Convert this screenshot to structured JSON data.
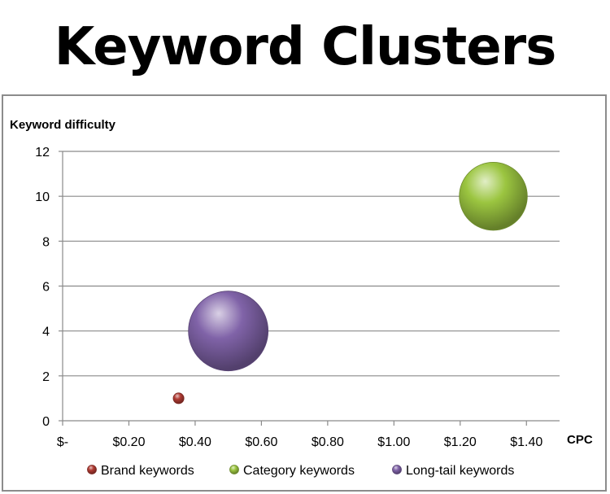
{
  "page_title": "Keyword Clusters",
  "chart_data": {
    "type": "bubble",
    "title": "Keyword Clusters",
    "xlabel": "CPC",
    "ylabel": "Keyword difficulty",
    "xlim": [
      0,
      1.5
    ],
    "ylim": [
      0,
      12
    ],
    "x_ticks": [
      0,
      0.2,
      0.4,
      0.6,
      0.8,
      1.0,
      1.2,
      1.4
    ],
    "x_tick_labels": [
      "$-",
      "$0.20",
      "$0.40",
      "$0.60",
      "$0.80",
      "$1.00",
      "$1.20",
      "$1.40"
    ],
    "y_ticks": [
      0,
      2,
      4,
      6,
      8,
      10,
      12
    ],
    "y_tick_labels": [
      "0",
      "2",
      "4",
      "6",
      "8",
      "10",
      "12"
    ],
    "grid": "horizontal",
    "legend_position": "bottom",
    "series": [
      {
        "name": "Brand keywords",
        "color": "#b03a32",
        "points": [
          {
            "x": 0.35,
            "y": 1,
            "size": 1
          }
        ]
      },
      {
        "name": "Category keywords",
        "color": "#9bc540",
        "points": [
          {
            "x": 1.3,
            "y": 10,
            "size": 40
          }
        ]
      },
      {
        "name": "Long-tail keywords",
        "color": "#8063a8",
        "points": [
          {
            "x": 0.5,
            "y": 4,
            "size": 55
          }
        ]
      }
    ]
  }
}
